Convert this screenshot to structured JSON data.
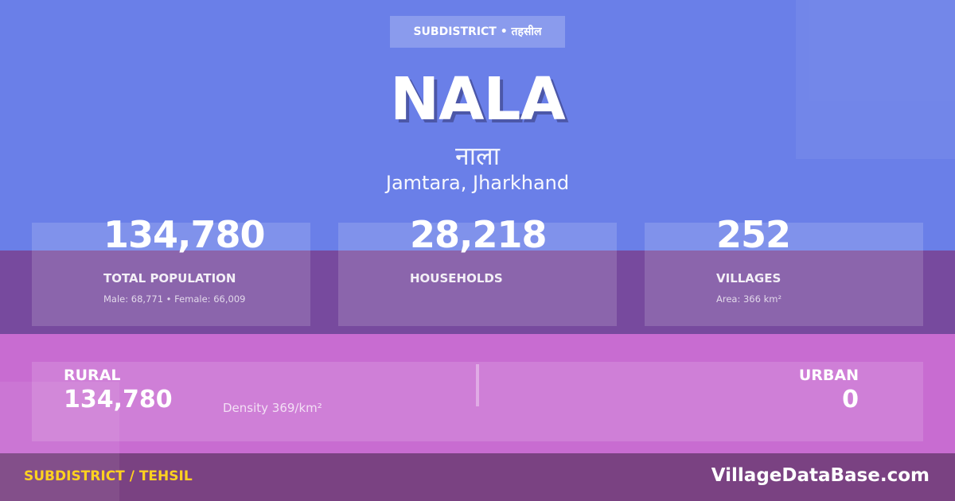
{
  "badge": "SUBDISTRICT • तहसील",
  "title": "NALA",
  "title_hindi": "नाला",
  "location": "Jamtara, Jharkhand",
  "stats": [
    {
      "value": "134,780",
      "label": "TOTAL POPULATION",
      "sub": "Male: 68,771 • Female: 66,009"
    },
    {
      "value": "28,218",
      "label": "HOUSEHOLDS",
      "sub": ""
    },
    {
      "value": "252",
      "label": "VILLAGES",
      "sub": "Area: 366 km²"
    }
  ],
  "rural": {
    "label": "RURAL",
    "value": "134,780"
  },
  "density": "Density 369/km²",
  "urban": {
    "label": "URBAN",
    "value": "0"
  },
  "footer": {
    "label": "SUBDISTRICT / TEHSIL",
    "site": "VillageDataBase.com"
  },
  "colors": {
    "top": "#6a7fe8",
    "band": "#774a9e",
    "pink": "#c86cd1",
    "footer": "#7a4282",
    "accent": "#ffd21f"
  }
}
